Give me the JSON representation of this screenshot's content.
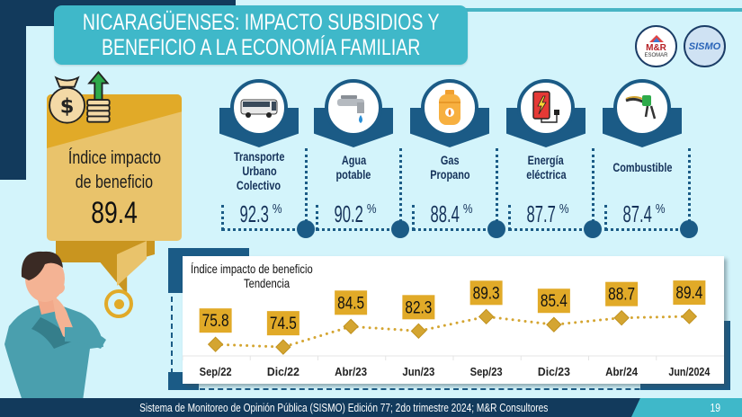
{
  "header": {
    "title_line1": "NICARAGÜENSES: IMPACTO SUBSIDIOS Y",
    "title_line2": "BENEFICIO A LA ECONOMÍA FAMILIAR"
  },
  "logos": {
    "mr": {
      "line1": "M&R",
      "line2": "ESOMAR",
      "icon": "mr-consultores-logo"
    },
    "sismo": {
      "text": "SISMO",
      "icon": "sismo-logo"
    }
  },
  "index_card": {
    "label_line1": "Índice impacto",
    "label_line2": "de beneficio",
    "value": "89.4",
    "icon": "money-bag-growth-icon"
  },
  "categories": [
    {
      "label_lines": [
        "Transporte",
        "Urbano",
        "Colectivo"
      ],
      "value": "92.3",
      "unit": "%",
      "icon": "bus-icon"
    },
    {
      "label_lines": [
        "Agua",
        "potable"
      ],
      "value": "90.2",
      "unit": "%",
      "icon": "water-tap-icon"
    },
    {
      "label_lines": [
        "Gas",
        "Propano"
      ],
      "value": "88.4",
      "unit": "%",
      "icon": "gas-cylinder-icon"
    },
    {
      "label_lines": [
        "Energía",
        "eléctrica"
      ],
      "value": "87.7",
      "unit": "%",
      "icon": "electricity-icon"
    },
    {
      "label_lines": [
        "Combustible"
      ],
      "value": "87.4",
      "unit": "%",
      "icon": "fuel-nozzle-icon"
    }
  ],
  "chart_data": {
    "type": "line",
    "title": "Índice impacto de beneficio",
    "subtitle": "Tendencia",
    "categories": [
      "Sep/22",
      "Dic/22",
      "Abr/23",
      "Jun/23",
      "Sep/23",
      "Dic/23",
      "Abr/24",
      "Jun/2024"
    ],
    "series": [
      {
        "name": "Índice impacto de beneficio",
        "values": [
          75.8,
          74.5,
          84.5,
          82.3,
          89.3,
          85.4,
          88.7,
          89.4
        ]
      }
    ],
    "data_labels": [
      "75.8",
      "74.5",
      "84.5",
      "82.3",
      "89.3",
      "85.4",
      "88.7",
      "89.4"
    ],
    "line_style": "dotted",
    "marker": "diamond",
    "color": "#d4a531",
    "label_bg": "#e1aa28",
    "xlabel": "",
    "ylabel": "",
    "grid": false
  },
  "footer": {
    "text": "Sistema de Monitoreo de Opinión Pública (SISMO) Edición 77; 2do trimestre 2024; M&R Consultores",
    "page_number": "19"
  },
  "colors": {
    "navy": "#123a5c",
    "teal": "#3fb8c9",
    "blue": "#1b5b86",
    "gold": "#e1aa28",
    "background": "#d3f4fb"
  }
}
